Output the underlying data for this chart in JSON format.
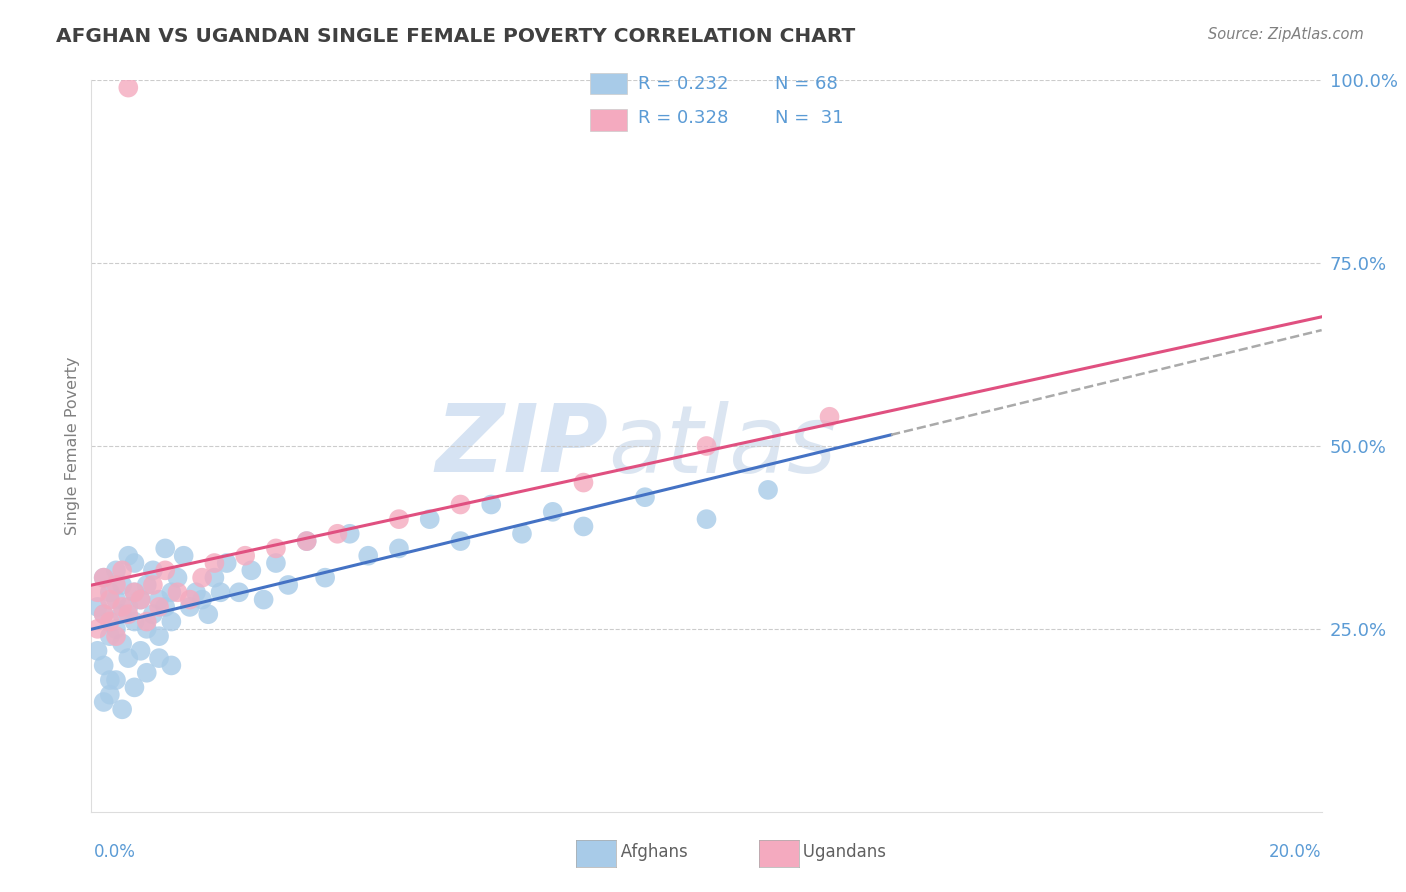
{
  "title": "AFGHAN VS UGANDAN SINGLE FEMALE POVERTY CORRELATION CHART",
  "source": "Source: ZipAtlas.com",
  "ylabel": "Single Female Poverty",
  "xlim": [
    0.0,
    0.2
  ],
  "ylim": [
    0.0,
    1.0
  ],
  "afghan_color": "#A8CBE8",
  "ugandan_color": "#F4AABF",
  "afghan_line_color": "#4472C4",
  "ugandan_line_color": "#E05080",
  "dashed_line_color": "#AAAAAA",
  "watermark_zip": "ZIP",
  "watermark_atlas": "atlas",
  "background_color": "#FFFFFF",
  "grid_color": "#CCCCCC",
  "title_color": "#404040",
  "axis_tick_color": "#5B9BD5",
  "legend_text_color": "#5B9BD5",
  "legend_n_color": "#5B9BD5",
  "source_color": "#808080",
  "ylabel_color": "#808080"
}
